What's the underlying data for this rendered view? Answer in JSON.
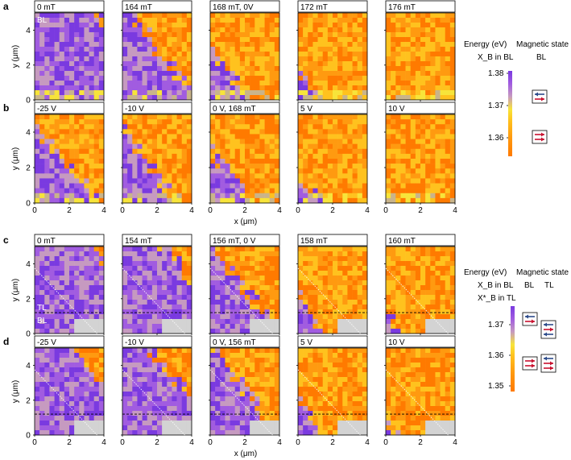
{
  "figure": {
    "panel_letters": [
      "a",
      "b",
      "c",
      "d"
    ],
    "colors": {
      "scale": [
        "#ff7a00",
        "#ff9a10",
        "#ffc21e",
        "#f7e43a",
        "#c69ac0",
        "#a15ce0",
        "#7a3ae0"
      ],
      "missing": "#d3d3d3",
      "spin_up": "#2b4a8a",
      "spin_down": "#c8102e"
    }
  },
  "chart_data": [
    {
      "id": "a",
      "type": "heatmap",
      "frames": [
        "0 mT",
        "164 mT",
        "168 mT, 0V",
        "172 mT",
        "176 mT"
      ],
      "frame_purple_fraction": [
        0.92,
        0.55,
        0.3,
        0.15,
        0.0
      ],
      "layer_label": "BL",
      "ylabel": "y (μm)",
      "xlabel": "",
      "xlim": [
        0,
        4
      ],
      "ylim": [
        0,
        5
      ],
      "yticks": [
        0,
        2,
        4
      ]
    },
    {
      "id": "b",
      "type": "heatmap",
      "frames": [
        "-25 V",
        "-10 V",
        "0 V, 168 mT",
        "5 V",
        "10 V"
      ],
      "frame_purple_fraction": [
        0.45,
        0.4,
        0.3,
        0.15,
        0.0
      ],
      "ylabel": "y (μm)",
      "xlabel": "x (μm)",
      "xlim": [
        0,
        4
      ],
      "ylim": [
        0,
        5
      ],
      "xticks": [
        0,
        2,
        4
      ],
      "yticks": [
        0,
        2,
        4
      ]
    },
    {
      "id": "c",
      "type": "heatmap",
      "frames": [
        "0 mT",
        "154 mT",
        "156 mT, 0 V",
        "158 mT",
        "160 mT"
      ],
      "frame_purple_fraction": [
        0.9,
        0.8,
        0.5,
        0.2,
        0.1
      ],
      "layer_labels": [
        "TL",
        "BL"
      ],
      "ylabel": "y (μm)",
      "xlabel": "",
      "xlim": [
        0,
        4
      ],
      "ylim": [
        0,
        5
      ],
      "yticks": [
        0,
        2,
        4
      ]
    },
    {
      "id": "d",
      "type": "heatmap",
      "frames": [
        "-25 V",
        "-10 V",
        "0 V, 156 mT",
        "5 V",
        "10 V"
      ],
      "frame_purple_fraction": [
        0.75,
        0.7,
        0.5,
        0.2,
        0.05
      ],
      "ylabel": "y (μm)",
      "xlabel": "x (μm)",
      "xlim": [
        0,
        4
      ],
      "ylim": [
        0,
        5
      ],
      "xticks": [
        0,
        2,
        4
      ],
      "yticks": [
        0,
        2,
        4
      ]
    }
  ],
  "colorbar_top": {
    "title": "Energy (eV)",
    "subtitle": "X_B in BL",
    "ticks": [
      "1.38",
      "1.37",
      "1.36"
    ],
    "range": [
      1.355,
      1.38
    ],
    "magnetic_state_title": "Magnetic state",
    "magnetic_state_col": "BL"
  },
  "colorbar_bottom": {
    "title": "Energy (eV)",
    "subtitle1": "X_B in BL",
    "subtitle2": "X*_B in TL",
    "ticks": [
      "1.37",
      "1.36",
      "1.35"
    ],
    "range": [
      1.347,
      1.375
    ],
    "magnetic_state_title": "Magnetic state",
    "magnetic_state_cols": [
      "BL",
      "TL"
    ]
  }
}
